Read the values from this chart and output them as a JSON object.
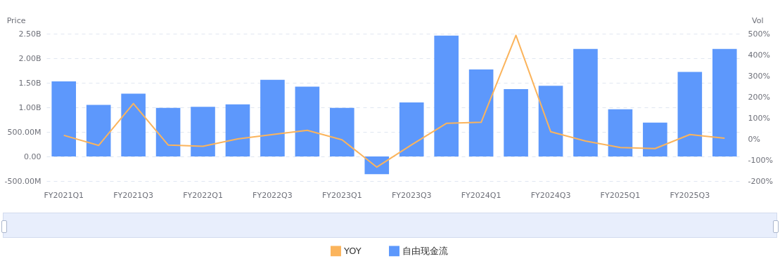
{
  "chart_data": {
    "type": "bar",
    "ylabel": "Price",
    "y2label": "Vol",
    "categories": [
      "FY2021Q1",
      null,
      "FY2021Q3",
      null,
      "FY2022Q1",
      null,
      "FY2022Q3",
      null,
      "FY2023Q1",
      null,
      "FY2023Q3",
      null,
      "FY2024Q1",
      null,
      "FY2024Q3",
      null,
      "FY2025Q1",
      null,
      "FY2025Q3",
      null
    ],
    "series": [
      {
        "name": "YOY",
        "type": "line",
        "axis": "y2",
        "color": "#fbb45c",
        "values": [
          17,
          -31,
          168,
          -29,
          -35,
          0,
          21,
          41,
          -4,
          -134,
          -28,
          74,
          79,
          492,
          34,
          -10,
          -41,
          -46,
          21,
          3
        ]
      },
      {
        "name": "自由现金流",
        "type": "bar",
        "color": "#5d98fc",
        "values": [
          1530000000,
          1050000000,
          1280000000,
          990000000,
          1010000000,
          1060000000,
          1560000000,
          1420000000,
          990000000,
          -360000000,
          1100000000,
          2460000000,
          1770000000,
          1370000000,
          1440000000,
          2190000000,
          960000000,
          690000000,
          1720000000,
          2190000000
        ]
      }
    ],
    "ylim": [
      -500000000,
      2500000000
    ],
    "yticks": [
      {
        "value": -500000000,
        "label": "-500.00M"
      },
      {
        "value": 0,
        "label": "0.00"
      },
      {
        "value": 500000000,
        "label": "500.00M"
      },
      {
        "value": 1000000000,
        "label": "1.00B"
      },
      {
        "value": 1500000000,
        "label": "1.50B"
      },
      {
        "value": 2000000000,
        "label": "2.00B"
      },
      {
        "value": 2500000000,
        "label": "2.50B"
      }
    ],
    "y2lim": [
      -200,
      500
    ],
    "y2ticks": [
      {
        "value": -200,
        "label": "-200%"
      },
      {
        "value": -100,
        "label": "-100%"
      },
      {
        "value": 0,
        "label": "0%"
      },
      {
        "value": 100,
        "label": "100%"
      },
      {
        "value": 200,
        "label": "200%"
      },
      {
        "value": 300,
        "label": "300%"
      },
      {
        "value": 400,
        "label": "400%"
      },
      {
        "value": 500,
        "label": "500%"
      }
    ],
    "grid": "y",
    "legend": "bottom",
    "marker": "none",
    "line_style": "solid"
  }
}
